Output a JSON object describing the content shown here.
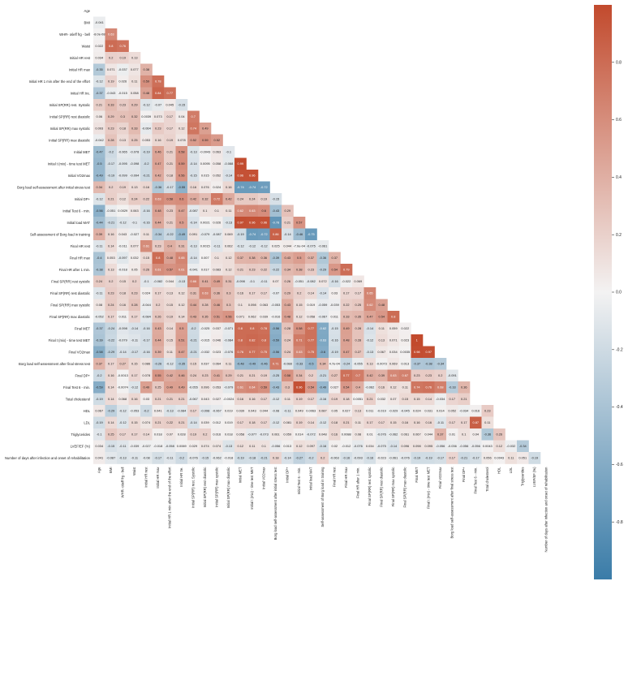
{
  "chart_data": {
    "type": "heatmap",
    "title": "",
    "xlabel": "",
    "ylabel": "",
    "mask": "upper-triangle-and-diagonal",
    "colormap": {
      "negative": "#3a7ca8",
      "center": "#f3f2f2",
      "positive": "#c24a2d"
    },
    "colorbar": {
      "min": -1.0,
      "max": 1.0,
      "ticks": [
        -0.8,
        -0.6,
        -0.4,
        -0.2,
        0.0,
        0.2,
        0.4,
        0.6,
        0.8
      ],
      "tick_labels": [
        "-0.8",
        "-0.6",
        "-0.4",
        "-0.2",
        "0.0",
        "0.2",
        "0.4",
        "0.6",
        "0.8"
      ]
    },
    "variables": [
      "Age",
      "BMI",
      "WHR- ośeff frg - bell",
      "Waist",
      "Initial HR rest",
      "Initial HR max",
      "Initial HR 1 min after the end of the effort",
      "Initial HR tre.",
      "Initial SP(RR) rest. Systolic",
      "Initial SP(RR) rest diastolic",
      "Initial SP(RR) max systolic",
      "Initial SP(RR) max diastolic",
      "Initial MET",
      "Initial t (mix) - time test MET",
      "Initial VO2max",
      "Borg load self-assessment after initial stress test",
      "Initial DP+",
      "Initial Test 6 - min.",
      "Initial load MAT",
      "Self-assessment of Borg load in training",
      "Final HR rest",
      "Final HR max",
      "Final HR after 1 min.",
      "Final SP(RR) rest systolic",
      "Final SP(RR) rest diastolic",
      "Final SP(RR) max systolic",
      "Final SP(RR) max diastolic",
      "Final MET",
      "Final t (mix) - time test MET",
      "Final VO2max",
      "Borg load self-assessment after final stress test",
      "Final DP+",
      "Final Test 6 - min.",
      "Total cholesterol",
      "HDL",
      "LDL",
      "Triglycerides",
      "LVEF/EF (%)",
      "Number of days after infection and onset of rehabilitation"
    ],
    "rows": [
      [],
      [
        -0.041
      ],
      [
        -8e-08,
        0.63
      ],
      [
        0.022,
        0.8,
        0.76
      ],
      [
        0.034,
        0.2,
        0.19,
        0.13
      ],
      [
        -0.35,
        0.071,
        -0.037,
        0.077,
        0.38
      ],
      [
        -0.12,
        0.19,
        0.026,
        0.11,
        0.59,
        0.78
      ],
      [
        -0.37,
        -0.043,
        -0.015,
        0.058,
        0.48,
        0.84,
        0.77
      ],
      [
        0.21,
        0.33,
        0.23,
        0.29,
        -0.12,
        -0.07,
        0.045,
        -0.15
      ],
      [
        0.06,
        0.29,
        0.3,
        0.32,
        0.0039,
        0.073,
        0.17,
        0.04,
        0.7
      ],
      [
        0.093,
        0.23,
        0.18,
        0.33,
        -0.064,
        0.23,
        0.17,
        0.12,
        0.74,
        0.49
      ],
      [
        -0.042,
        0.28,
        0.13,
        0.25,
        0.053,
        0.16,
        0.19,
        0.078,
        0.52,
        0.59,
        0.52
      ],
      [
        -0.47,
        -0.2,
        -0.065,
        -0.078,
        -0.19,
        0.46,
        0.21,
        0.58,
        -0.13,
        -0.0043,
        0.063,
        -0.1
      ],
      [
        -0.5,
        -0.17,
        -0.095,
        -0.098,
        -0.2,
        0.47,
        0.21,
        0.59,
        -0.14,
        0.0095,
        0.058,
        -0.088,
        0.99
      ],
      [
        -0.49,
        -0.19,
        -0.099,
        -0.094,
        -0.21,
        0.42,
        0.18,
        0.56,
        -0.15,
        0.015,
        0.052,
        -0.14,
        0.96,
        0.96
      ],
      [
        0.34,
        0.2,
        0.19,
        0.13,
        0.16,
        -0.36,
        -0.17,
        -0.55,
        0.16,
        0.076,
        0.024,
        0.16,
        -0.74,
        -0.74,
        -0.72
      ],
      [
        -0.12,
        0.21,
        0.12,
        0.24,
        0.22,
        0.63,
        0.58,
        0.6,
        0.42,
        0.32,
        0.72,
        0.42,
        0.24,
        0.24,
        0.19,
        -0.15
      ],
      [
        -0.56,
        -0.051,
        0.0029,
        0.063,
        -0.16,
        0.48,
        0.23,
        0.47,
        -0.087,
        0.1,
        0.1,
        0.11,
        0.62,
        0.63,
        0.6,
        -0.43,
        0.29
      ],
      [
        -0.44,
        -0.21,
        -0.12,
        -0.1,
        -0.16,
        0.44,
        0.21,
        0.5,
        -0.14,
        0.0021,
        0.026,
        -0.13,
        0.97,
        0.96,
        0.96,
        -0.78,
        0.21,
        0.57
      ],
      [
        0.39,
        0.16,
        0.043,
        -0.027,
        0.11,
        -0.34,
        -0.22,
        -0.49,
        0.091,
        -0.079,
        -0.087,
        0.069,
        -0.19,
        -0.74,
        -0.72,
        0.86,
        -0.14,
        -0.46,
        -0.75
      ],
      [
        -0.11,
        0.14,
        -0.011,
        0.077,
        0.61,
        0.23,
        0.4,
        0.31,
        -0.13,
        0.0015,
        -0.11,
        0.062,
        -0.12,
        -0.12,
        -0.12,
        0.025,
        0.044,
        -0.0007,
        -0.075,
        -0.061
      ],
      [
        -0.4,
        0.053,
        -0.097,
        0.032,
        0.15,
        0.8,
        0.48,
        0.65,
        -0.14,
        0.007,
        0.1,
        0.12,
        0.37,
        0.38,
        0.36,
        -0.39,
        0.43,
        0.5,
        0.37,
        -0.36,
        0.37
      ],
      [
        -0.38,
        0.13,
        -0.018,
        0.05,
        0.26,
        0.61,
        0.57,
        0.61,
        -0.041,
        0.017,
        0.083,
        0.12,
        0.21,
        0.23,
        0.22,
        -0.22,
        0.34,
        0.38,
        0.23,
        -0.29,
        0.54,
        0.79
      ],
      [
        0.24,
        0.2,
        0.15,
        0.2,
        -0.1,
        -0.082,
        0.044,
        -0.13,
        0.66,
        0.41,
        0.49,
        0.31,
        -0.098,
        -0.1,
        -0.11,
        0.07,
        0.26,
        -0.051,
        -0.082,
        0.072,
        -0.16,
        -0.022,
        0.069
      ],
      [
        -0.11,
        0.23,
        0.18,
        0.23,
        0.024,
        0.17,
        0.13,
        0.12,
        0.31,
        0.63,
        0.36,
        0.3,
        0.16,
        0.17,
        0.17,
        -0.07,
        0.29,
        0.2,
        0.14,
        -0.14,
        0.03,
        0.17,
        0.17,
        0.65
      ],
      [
        0.08,
        0.24,
        0.16,
        0.28,
        -0.044,
        0.2,
        0.15,
        0.12,
        0.44,
        0.28,
        0.46,
        0.3,
        0.1,
        0.098,
        0.063,
        -0.053,
        0.43,
        0.15,
        0.019,
        -0.059,
        -0.039,
        0.22,
        0.25,
        0.62,
        0.48
      ],
      [
        -0.052,
        0.17,
        0.011,
        0.17,
        -0.084,
        0.26,
        0.19,
        0.14,
        0.43,
        0.35,
        0.51,
        0.56,
        0.071,
        0.062,
        0.039,
        -0.016,
        0.48,
        0.12,
        0.058,
        -0.067,
        0.011,
        0.33,
        0.35,
        0.47,
        0.54,
        0.8
      ],
      [
        -0.37,
        -0.24,
        -0.098,
        -0.14,
        -0.16,
        0.43,
        0.14,
        0.5,
        -0.2,
        -0.025,
        0.037,
        -0.071,
        0.8,
        0.8,
        0.78,
        -0.56,
        0.28,
        0.58,
        0.77,
        -0.62,
        -0.15,
        0.49,
        0.28,
        -0.14,
        0.11,
        0.059,
        0.022
      ],
      [
        -0.39,
        -0.22,
        -0.079,
        -0.11,
        -0.17,
        0.44,
        0.15,
        0.51,
        -0.21,
        -0.015,
        0.046,
        -0.084,
        0.8,
        0.82,
        0.8,
        -0.59,
        0.24,
        0.71,
        0.77,
        -0.63,
        -0.16,
        0.48,
        0.28,
        -0.12,
        0.13,
        0.071,
        0.023,
        1.0
      ],
      [
        -0.58,
        -0.29,
        -0.14,
        -0.17,
        -0.16,
        0.39,
        0.11,
        0.47,
        -0.21,
        -0.032,
        0.023,
        -0.076,
        0.76,
        0.77,
        0.75,
        -0.56,
        0.24,
        0.63,
        0.75,
        -0.6,
        -0.19,
        0.47,
        0.27,
        -0.13,
        0.067,
        0.034,
        0.0035,
        0.98,
        0.97
      ],
      [
        0.37,
        0.17,
        0.27,
        0.15,
        0.086,
        -0.26,
        -0.12,
        -0.35,
        0.15,
        0.037,
        0.064,
        0.11,
        -0.48,
        -0.49,
        -0.46,
        0.71,
        -0.088,
        -0.33,
        -0.5,
        0.34,
        0.00047,
        -0.24,
        -0.055,
        0.13,
        -0.0073,
        0.069,
        0.013,
        -0.37,
        -0.38,
        -0.34
      ],
      [
        -0.2,
        0.16,
        -0.0013,
        0.17,
        0.078,
        0.55,
        0.42,
        0.46,
        0.24,
        0.23,
        0.41,
        0.29,
        0.21,
        0.21,
        0.19,
        -0.25,
        0.58,
        0.34,
        0.2,
        -0.21,
        0.27,
        0.77,
        0.7,
        0.42,
        0.39,
        0.63,
        0.67,
        0.23,
        0.23,
        0.2,
        -0.091
      ],
      [
        -0.59,
        0.14,
        -0.0074,
        -0.12,
        0.49,
        0.25,
        0.49,
        0.49,
        -0.055,
        0.096,
        0.053,
        -0.079,
        0.61,
        0.64,
        0.59,
        -0.43,
        0.3,
        0.96,
        0.54,
        -0.49,
        0.027,
        0.54,
        0.4,
        -0.062,
        0.16,
        0.12,
        0.11,
        0.74,
        0.76,
        0.68,
        -0.33,
        0.36
      ],
      [
        -0.19,
        0.14,
        0.068,
        0.16,
        0.03,
        0.21,
        0.21,
        0.21,
        -0.067,
        0.043,
        0.027,
        -0.0024,
        0.16,
        0.16,
        0.17,
        -0.12,
        0.11,
        0.19,
        0.17,
        -0.16,
        0.19,
        0.18,
        0.0051,
        0.21,
        0.032,
        0.07,
        0.15,
        0.15,
        0.14,
        -0.034,
        0.17,
        0.21
      ],
      [
        0.067,
        -0.29,
        -0.12,
        -0.053,
        -0.2,
        0.041,
        -0.13,
        -0.084,
        0.17,
        -0.098,
        -0.067,
        0.019,
        0.039,
        0.043,
        0.044,
        -0.08,
        -0.11,
        0.049,
        0.0063,
        0.087,
        0.05,
        0.027,
        0.13,
        0.011,
        -0.019,
        -0.029,
        -0.045,
        0.024,
        0.031,
        0.014,
        0.052,
        -0.034,
        0.016,
        0.23
      ],
      [
        -0.19,
        0.14,
        -0.12,
        0.15,
        0.074,
        0.21,
        0.22,
        0.21,
        -0.14,
        0.039,
        0.012,
        0.019,
        0.17,
        0.18,
        0.17,
        -0.12,
        0.081,
        0.19,
        0.14,
        -0.12,
        0.18,
        0.21,
        0.11,
        0.17,
        0.17,
        0.15,
        0.16,
        0.16,
        0.16,
        -0.11,
        0.17,
        0.17,
        0.87,
        0.11
      ],
      [
        -0.1,
        0.25,
        0.17,
        0.17,
        0.14,
        0.018,
        0.07,
        0.028,
        0.19,
        0.2,
        0.016,
        0.018,
        0.058,
        -0.077,
        -0.073,
        0.061,
        0.059,
        0.014,
        -0.072,
        0.048,
        0.16,
        0.0088,
        0.08,
        0.01,
        -0.076,
        -0.062,
        0.061,
        0.067,
        0.044,
        0.37,
        0.01,
        0.1,
        0.04,
        -0.36,
        0.26
      ],
      [
        0.034,
        -0.15,
        -0.11,
        -0.039,
        -0.027,
        -0.018,
        -0.058,
        0.0069,
        0.029,
        0.074,
        0.074,
        -0.13,
        0.12,
        0.11,
        0.1,
        -0.056,
        0.013,
        0.12,
        0.097,
        -0.16,
        0.02,
        -0.012,
        -0.076,
        0.034,
        -0.075,
        -0.14,
        0.096,
        0.098,
        0.095,
        -0.056,
        -0.036,
        -0.056,
        -0.056,
        0.0043,
        0.12,
        -0.032,
        -0.34
      ],
      [
        0.041,
        -0.087,
        -0.13,
        -0.11,
        -0.08,
        -0.17,
        -0.11,
        -0.2,
        -0.076,
        -0.15,
        -0.062,
        -0.018,
        -0.19,
        -0.18,
        -0.21,
        0.18,
        -0.14,
        -0.27,
        -0.2,
        0.2,
        -0.063,
        -0.16,
        -0.093,
        -0.16,
        -0.023,
        -0.061,
        -0.076,
        -0.19,
        -0.19,
        -0.17,
        0.17,
        -0.21,
        -0.17,
        0.056,
        0.0043,
        0.11,
        0.051,
        -0.19
      ]
    ]
  }
}
